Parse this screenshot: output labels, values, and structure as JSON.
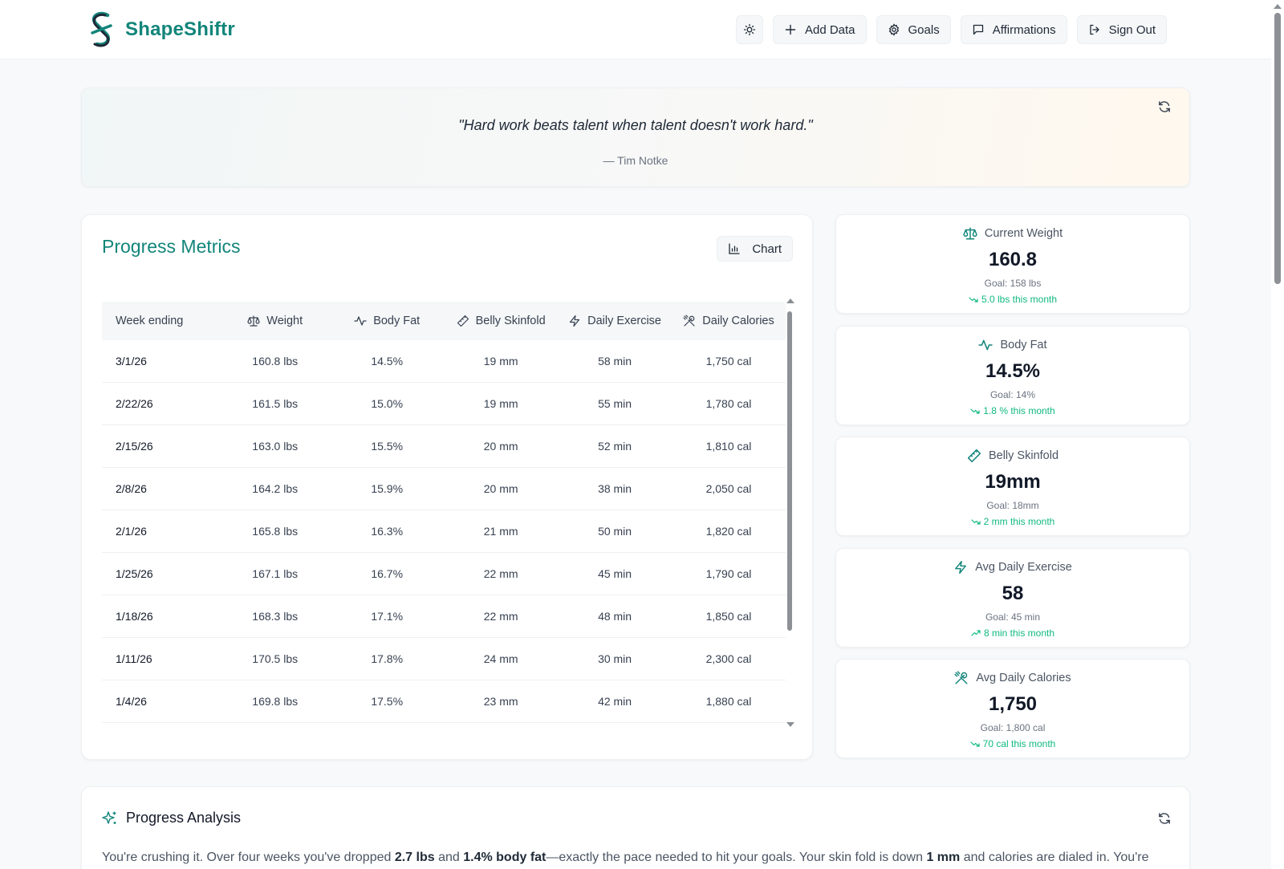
{
  "app": {
    "name": "ShapeShiftr"
  },
  "nav": {
    "theme_icon": "sun-icon",
    "add_data": "Add Data",
    "goals": "Goals",
    "affirmations": "Affirmations",
    "sign_out": "Sign Out"
  },
  "quote": {
    "text": "\"Hard work beats talent when talent doesn't work hard.\"",
    "author": "— Tim Notke"
  },
  "metrics": {
    "title": "Progress Metrics",
    "chart_button": "Chart",
    "columns": [
      "Week ending",
      "Weight",
      "Body Fat",
      "Belly Skinfold",
      "Daily Exercise",
      "Daily Calories"
    ],
    "rows": [
      [
        "3/1/26",
        "160.8 lbs",
        "14.5%",
        "19 mm",
        "58 min",
        "1,750 cal"
      ],
      [
        "2/22/26",
        "161.5 lbs",
        "15.0%",
        "19 mm",
        "55 min",
        "1,780 cal"
      ],
      [
        "2/15/26",
        "163.0 lbs",
        "15.5%",
        "20 mm",
        "52 min",
        "1,810 cal"
      ],
      [
        "2/8/26",
        "164.2 lbs",
        "15.9%",
        "20 mm",
        "38 min",
        "2,050 cal"
      ],
      [
        "2/1/26",
        "165.8 lbs",
        "16.3%",
        "21 mm",
        "50 min",
        "1,820 cal"
      ],
      [
        "1/25/26",
        "167.1 lbs",
        "16.7%",
        "22 mm",
        "45 min",
        "1,790 cal"
      ],
      [
        "1/18/26",
        "168.3 lbs",
        "17.1%",
        "22 mm",
        "48 min",
        "1,850 cal"
      ],
      [
        "1/11/26",
        "170.5 lbs",
        "17.8%",
        "24 mm",
        "30 min",
        "2,300 cal"
      ],
      [
        "1/4/26",
        "169.8 lbs",
        "17.5%",
        "23 mm",
        "42 min",
        "1,880 cal"
      ]
    ]
  },
  "stats": [
    {
      "label": "Current Weight",
      "value": "160.8",
      "goal": "Goal: 158 lbs",
      "trend": "5.0 lbs this month",
      "direction": "down"
    },
    {
      "label": "Body Fat",
      "value": "14.5%",
      "goal": "Goal: 14%",
      "trend": "1.8 % this month",
      "direction": "down"
    },
    {
      "label": "Belly Skinfold",
      "value": "19mm",
      "goal": "Goal: 18mm",
      "trend": "2 mm this month",
      "direction": "down"
    },
    {
      "label": "Avg Daily Exercise",
      "value": "58",
      "goal": "Goal: 45 min",
      "trend": "8 min this month",
      "direction": "up"
    },
    {
      "label": "Avg Daily Calories",
      "value": "1,750",
      "goal": "Goal: 1,800 cal",
      "trend": "70 cal this month",
      "direction": "down"
    }
  ],
  "analysis": {
    "title": "Progress Analysis",
    "text_1": "You're crushing it. Over four weeks you've dropped ",
    "b_1": "2.7 lbs",
    "text_2": " and ",
    "b_2": "1.4% body fat",
    "text_3": "—exactly the pace needed to hit your goals. Your skin fold is down ",
    "b_3": "1 mm",
    "text_4": " and calories are dialed in. You're"
  },
  "colors": {
    "accent": "#12857a",
    "trend": "#10b981"
  }
}
